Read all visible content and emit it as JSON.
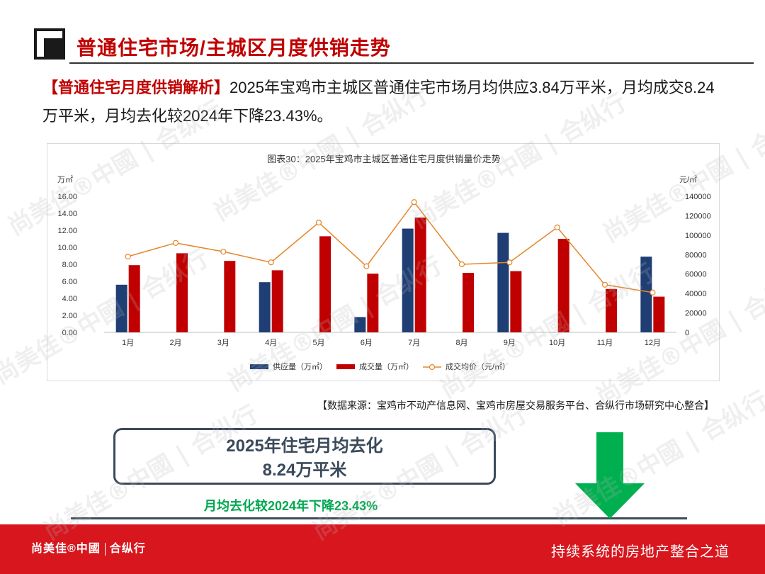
{
  "header": {
    "title": "普通住宅市场/主城区月度供销走势"
  },
  "analysis": {
    "tag": "【普通住宅月度供销解析】",
    "text": "2025年宝鸡市主城区普通住宅市场月均供应3.84万平米，月均成交8.24万平米，月均去化较2024年下降23.43%。"
  },
  "chart_data": {
    "type": "bar",
    "title": "图表30：2025年宝鸡市主城区普通住宅月度供销量价走势",
    "categories": [
      "1月",
      "2月",
      "3月",
      "4月",
      "5月",
      "6月",
      "7月",
      "8月",
      "9月",
      "10月",
      "11月",
      "12月"
    ],
    "y_left_unit": "万㎡",
    "y_right_unit": "元/㎡",
    "y_left_ticks": [
      "0.00",
      "2.00",
      "4.00",
      "6.00",
      "8.00",
      "10.00",
      "12.00",
      "14.00",
      "16.00"
    ],
    "y_right_ticks": [
      "0",
      "20000",
      "40000",
      "60000",
      "80000",
      "100000",
      "120000",
      "140000"
    ],
    "ylim_left": [
      0,
      16
    ],
    "ylim_right": [
      0,
      140000
    ],
    "series": [
      {
        "name": "供应量（万㎡）",
        "type": "bar",
        "axis": "left",
        "color": "#1f3e73",
        "values": [
          5.6,
          null,
          null,
          5.9,
          null,
          1.8,
          12.2,
          null,
          11.7,
          null,
          null,
          8.9
        ]
      },
      {
        "name": "成交量（万㎡）",
        "type": "bar",
        "axis": "left",
        "color": "#c00000",
        "values": [
          7.9,
          9.3,
          8.4,
          7.3,
          11.3,
          6.9,
          13.5,
          7.0,
          7.2,
          11.0,
          5.1,
          4.2
        ]
      },
      {
        "name": "成交均价（元/㎡）",
        "type": "line",
        "axis": "right",
        "color": "#e6862a",
        "values": [
          78000,
          92000,
          83000,
          72000,
          113000,
          68000,
          134000,
          70000,
          72000,
          108000,
          49000,
          41000
        ]
      }
    ],
    "legend_position": "bottom"
  },
  "source": "【数据来源：宝鸡市不动产信息网、宝鸡市房屋交易服务平台、合纵行市场研究中心整合】",
  "summary": {
    "line1": "2025年住宅月均去化",
    "line2": "8.24万平米",
    "decline": "月均去化较2024年下降23.43%"
  },
  "colors": {
    "accent_red": "#c00000",
    "footer_red": "#d7161e",
    "arrow_green": "#00b050",
    "dark_slate": "#3b4a5a"
  },
  "footer": {
    "logo_a": "尚美佳®中國",
    "logo_b": "合纵行",
    "slogan": "持续系统的房地产整合之道"
  },
  "watermark": {
    "text": "尚美佳®中國 | 合纵行"
  }
}
